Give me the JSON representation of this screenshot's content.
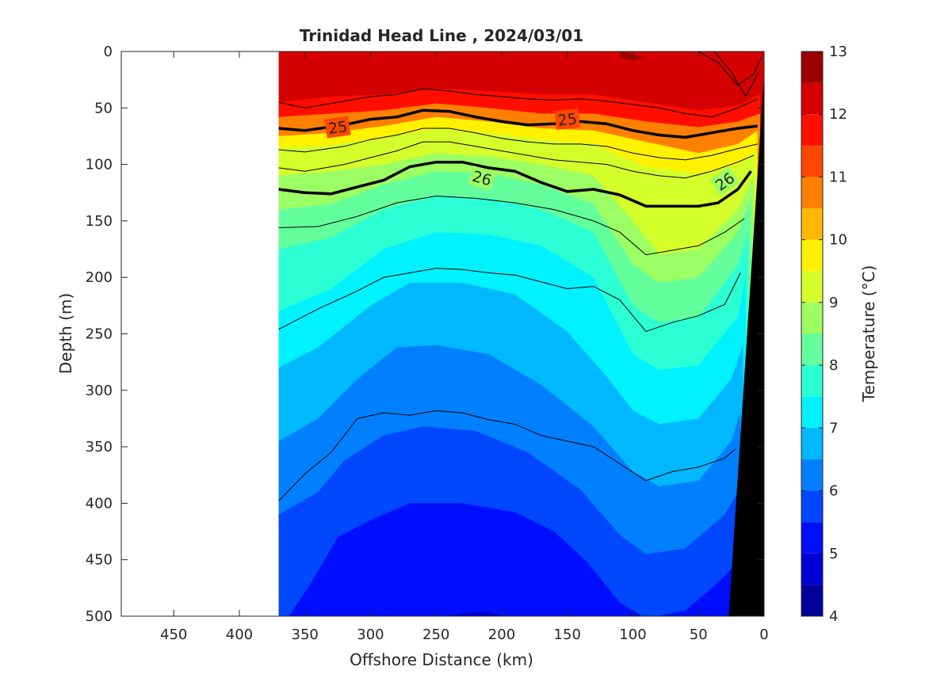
{
  "chart_data": {
    "type": "heatmap",
    "title": "Trinidad Head Line , 2024/03/01",
    "xlabel": "Offshore Distance (km)",
    "ylabel": "Depth (m)",
    "xlim": [
      490,
      0
    ],
    "ylim": [
      0,
      500
    ],
    "x_direction": "reversed",
    "y_direction": "reversed (depth increases downward)",
    "x_ticks": [
      450,
      400,
      350,
      300,
      250,
      200,
      150,
      100,
      50,
      0
    ],
    "y_ticks": [
      0,
      50,
      100,
      150,
      200,
      250,
      300,
      350,
      400,
      450,
      500
    ],
    "colorbar": {
      "label": "Temperature (°C)",
      "range": [
        4,
        13
      ],
      "ticks": [
        4,
        5,
        6,
        7,
        8,
        9,
        10,
        11,
        12,
        13
      ],
      "levels": [
        4,
        4.5,
        5,
        5.5,
        6,
        6.5,
        7,
        7.5,
        8,
        8.5,
        9,
        9.5,
        10,
        10.5,
        11,
        11.5,
        12,
        12.5,
        13
      ],
      "colormap": "jet"
    },
    "data_extent_km": [
      370,
      0
    ],
    "temperature_isotherms": [
      {
        "temp": 12,
        "x": [
          370,
          330,
          290,
          250,
          210,
          170,
          130,
          90,
          50,
          20,
          3
        ],
        "depth": [
          45,
          40,
          38,
          33,
          35,
          38,
          38,
          45,
          52,
          48,
          38
        ]
      },
      {
        "temp": 11,
        "x": [
          370,
          330,
          290,
          250,
          210,
          170,
          130,
          90,
          50,
          20,
          3
        ],
        "depth": [
          58,
          55,
          52,
          46,
          50,
          55,
          55,
          62,
          67,
          62,
          55
        ]
      },
      {
        "temp": 10,
        "x": [
          370,
          330,
          290,
          250,
          210,
          170,
          130,
          90,
          50,
          20,
          5
        ],
        "depth": [
          75,
          72,
          66,
          58,
          62,
          68,
          70,
          80,
          90,
          82,
          70
        ]
      },
      {
        "temp": 9.5,
        "x": [
          370,
          330,
          290,
          250,
          210,
          170,
          130,
          90,
          50,
          20,
          6
        ],
        "depth": [
          85,
          83,
          76,
          68,
          72,
          78,
          82,
          102,
          108,
          100,
          88
        ]
      },
      {
        "temp": 9,
        "x": [
          370,
          330,
          290,
          250,
          210,
          170,
          130,
          100,
          80,
          50,
          20,
          8
        ],
        "depth": [
          110,
          106,
          100,
          90,
          93,
          100,
          110,
          150,
          180,
          175,
          140,
          110
        ]
      },
      {
        "temp": 8.5,
        "x": [
          370,
          330,
          290,
          250,
          210,
          170,
          130,
          100,
          80,
          50,
          20,
          10
        ],
        "depth": [
          140,
          135,
          118,
          106,
          108,
          118,
          135,
          188,
          205,
          200,
          160,
          130
        ]
      },
      {
        "temp": 8,
        "x": [
          370,
          330,
          290,
          250,
          210,
          170,
          130,
          100,
          80,
          50,
          20,
          12
        ],
        "depth": [
          175,
          165,
          140,
          128,
          130,
          140,
          160,
          225,
          240,
          235,
          190,
          160
        ]
      },
      {
        "temp": 7.5,
        "x": [
          370,
          330,
          290,
          250,
          210,
          170,
          130,
          100,
          80,
          50,
          20,
          14
        ],
        "depth": [
          230,
          210,
          175,
          160,
          162,
          172,
          200,
          268,
          282,
          278,
          235,
          200
        ]
      },
      {
        "temp": 7,
        "x": [
          370,
          340,
          300,
          270,
          230,
          190,
          150,
          120,
          100,
          80,
          50,
          25,
          16
        ],
        "depth": [
          280,
          262,
          225,
          205,
          205,
          215,
          248,
          288,
          318,
          330,
          325,
          290,
          260
        ]
      },
      {
        "temp": 6.5,
        "x": [
          370,
          340,
          310,
          280,
          250,
          210,
          170,
          130,
          100,
          80,
          50,
          25,
          18
        ],
        "depth": [
          345,
          325,
          290,
          262,
          260,
          268,
          295,
          332,
          372,
          385,
          380,
          345,
          320
        ]
      },
      {
        "temp": 6,
        "x": [
          370,
          340,
          320,
          290,
          260,
          220,
          180,
          140,
          110,
          90,
          60,
          30,
          20
        ],
        "depth": [
          410,
          390,
          362,
          340,
          332,
          336,
          355,
          388,
          428,
          445,
          440,
          410,
          390
        ]
      },
      {
        "temp": 5.5,
        "x": [
          365,
          345,
          325,
          300,
          270,
          230,
          190,
          160,
          135,
          110,
          90,
          60,
          35,
          22
        ],
        "depth": [
          505,
          470,
          430,
          415,
          400,
          400,
          408,
          425,
          452,
          488,
          502,
          495,
          470,
          455
        ]
      },
      {
        "temp": 5,
        "x": [
          250,
          230,
          210,
          190
        ],
        "depth": [
          503,
          497,
          496,
          503
        ]
      }
    ],
    "density_contours": {
      "labeled": [
        {
          "sigma": 25,
          "label": "25",
          "x": [
            370,
            350,
            320,
            300,
            280,
            260,
            240,
            220,
            200,
            180,
            160,
            140,
            120,
            100,
            80,
            60,
            40,
            20,
            5
          ],
          "depth": [
            68,
            70,
            65,
            60,
            58,
            52,
            53,
            58,
            62,
            65,
            64,
            62,
            64,
            70,
            74,
            76,
            72,
            68,
            66
          ]
        },
        {
          "sigma": 26,
          "label": "26",
          "x": [
            370,
            350,
            330,
            310,
            290,
            270,
            250,
            230,
            210,
            190,
            170,
            150,
            130,
            110,
            90,
            70,
            50,
            35,
            20,
            10
          ],
          "depth": [
            122,
            125,
            126,
            120,
            114,
            102,
            98,
            98,
            103,
            106,
            116,
            124,
            122,
            127,
            137,
            137,
            137,
            134,
            122,
            106
          ]
        }
      ],
      "thin": [
        {
          "x": [
            370,
            350,
            320,
            300,
            280,
            260,
            240,
            220,
            200,
            180,
            160,
            140,
            120,
            100,
            80,
            60,
            40,
            20,
            5
          ],
          "depth": [
            45,
            50,
            44,
            40,
            38,
            33,
            35,
            38,
            40,
            42,
            43,
            42,
            44,
            47,
            50,
            55,
            58,
            50,
            42
          ]
        },
        {
          "x": [
            370,
            350,
            320,
            300,
            280,
            260,
            240,
            220,
            200,
            180,
            160,
            140,
            120,
            100,
            80,
            60,
            40,
            20,
            5
          ],
          "depth": [
            87,
            89,
            84,
            78,
            74,
            68,
            68,
            72,
            77,
            80,
            82,
            82,
            84,
            90,
            94,
            96,
            92,
            86,
            82
          ]
        },
        {
          "x": [
            370,
            350,
            320,
            300,
            280,
            260,
            240,
            220,
            200,
            180,
            160,
            140,
            120,
            100,
            80,
            60,
            40,
            20,
            8
          ],
          "depth": [
            103,
            106,
            100,
            94,
            88,
            80,
            80,
            84,
            88,
            92,
            96,
            98,
            100,
            106,
            110,
            112,
            106,
            98,
            92
          ]
        },
        {
          "x": [
            370,
            340,
            310,
            280,
            250,
            220,
            190,
            160,
            130,
            110,
            90,
            70,
            50,
            30,
            15
          ],
          "depth": [
            156,
            155,
            146,
            134,
            128,
            130,
            134,
            140,
            150,
            160,
            180,
            176,
            172,
            160,
            148
          ]
        },
        {
          "x": [
            370,
            340,
            310,
            290,
            270,
            250,
            230,
            210,
            190,
            170,
            150,
            130,
            110,
            90,
            70,
            50,
            30,
            18
          ],
          "depth": [
            246,
            228,
            212,
            200,
            196,
            192,
            193,
            196,
            198,
            204,
            210,
            208,
            220,
            248,
            240,
            234,
            224,
            196
          ]
        },
        {
          "x": [
            370,
            350,
            330,
            310,
            290,
            270,
            250,
            230,
            210,
            190,
            170,
            150,
            130,
            110,
            90,
            70,
            50,
            30,
            22
          ],
          "depth": [
            398,
            374,
            355,
            325,
            320,
            322,
            318,
            320,
            326,
            330,
            340,
            345,
            350,
            365,
            380,
            372,
            368,
            360,
            352
          ]
        },
        {
          "x": [
            50,
            35,
            20,
            8,
            2
          ],
          "depth": [
            0,
            10,
            30,
            20,
            5
          ]
        },
        {
          "x": [
            38,
            25,
            14,
            4
          ],
          "depth": [
            0,
            18,
            40,
            18
          ]
        }
      ],
      "label_positions_sigma25": [
        [
          325,
          67
        ],
        [
          150,
          60
        ]
      ],
      "label_positions_sigma26": [
        [
          215,
          112
        ],
        [
          30,
          115
        ]
      ]
    },
    "warm_cores": [
      {
        "x": [
          110,
          100,
          90
        ],
        "depth": [
          5,
          8,
          5
        ]
      }
    ],
    "seafloor": {
      "x": [
        27,
        0,
        0
      ],
      "depth": [
        500,
        20,
        500
      ],
      "color": "#000000"
    }
  }
}
